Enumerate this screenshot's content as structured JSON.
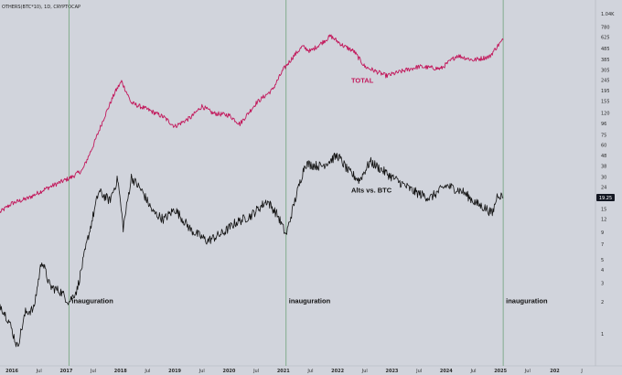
{
  "chart_data": {
    "type": "line",
    "title": "OTHERS(BTC*10), 1D, CRYPTOCAP",
    "scale": "log",
    "ylim": [
      0.5,
      1400
    ],
    "y_ticks": [
      "1.04K",
      "780",
      "625",
      "485",
      "385",
      "305",
      "245",
      "195",
      "155",
      "120",
      "96",
      "75",
      "60",
      "48",
      "38",
      "30",
      "24",
      "15",
      "12",
      "9",
      "7",
      "5",
      "4",
      "3",
      "2",
      "1"
    ],
    "y_tick_values": [
      1040,
      780,
      625,
      485,
      385,
      305,
      245,
      195,
      155,
      120,
      96,
      75,
      60,
      48,
      38,
      30,
      24,
      15,
      12,
      9,
      7,
      5,
      4,
      3,
      2,
      1
    ],
    "x_ticks": [
      "2016",
      "Jul",
      "2017",
      "Jul",
      "2018",
      "Jul",
      "2019",
      "Jul",
      "2020",
      "Jul",
      "2021",
      "Jul",
      "2022",
      "Jul",
      "2023",
      "Jul",
      "2024",
      "Jul",
      "2025",
      "Jul",
      "202",
      "J"
    ],
    "x_tick_values": [
      2016.0,
      2016.5,
      2017.0,
      2017.5,
      2018.0,
      2018.5,
      2019.0,
      2019.5,
      2020.0,
      2020.5,
      2021.0,
      2021.5,
      2022.0,
      2022.5,
      2023.0,
      2023.5,
      2024.0,
      2024.5,
      2025.0,
      2025.5,
      2026.0,
      2026.5
    ],
    "xlim": [
      2015.78,
      2026.75
    ],
    "current_value": "19.25",
    "inauguration_dates": [
      2017.05,
      2021.05,
      2025.05
    ],
    "series": [
      {
        "name": "TOTAL",
        "color": "#c2185b",
        "x": [
          2015.78,
          2016.0,
          2016.3,
          2016.6,
          2016.9,
          2017.1,
          2017.3,
          2017.5,
          2017.7,
          2017.9,
          2018.02,
          2018.2,
          2018.5,
          2018.8,
          2019.0,
          2019.3,
          2019.5,
          2019.7,
          2020.0,
          2020.2,
          2020.5,
          2020.8,
          2021.0,
          2021.2,
          2021.35,
          2021.5,
          2021.8,
          2021.87,
          2022.1,
          2022.3,
          2022.5,
          2022.9,
          2023.2,
          2023.5,
          2023.9,
          2024.2,
          2024.5,
          2024.8,
          2024.95,
          2025.05
        ],
        "values": [
          14,
          17,
          19,
          23,
          27,
          30,
          35,
          60,
          110,
          190,
          240,
          150,
          130,
          110,
          90,
          110,
          140,
          120,
          115,
          95,
          150,
          200,
          310,
          420,
          510,
          460,
          600,
          640,
          520,
          460,
          330,
          270,
          300,
          330,
          315,
          420,
          380,
          410,
          520,
          590
        ]
      },
      {
        "name": "Alts vs. BTC",
        "color": "#111111",
        "x": [
          2015.78,
          2015.95,
          2016.1,
          2016.25,
          2016.4,
          2016.55,
          2016.7,
          2016.9,
          2017.05,
          2017.2,
          2017.4,
          2017.6,
          2017.8,
          2017.95,
          2018.05,
          2018.2,
          2018.4,
          2018.6,
          2018.8,
          2019.0,
          2019.3,
          2019.6,
          2019.9,
          2020.1,
          2020.4,
          2020.7,
          2020.9,
          2021.05,
          2021.2,
          2021.4,
          2021.7,
          2022.0,
          2022.2,
          2022.4,
          2022.6,
          2023.0,
          2023.4,
          2023.7,
          2024.0,
          2024.3,
          2024.55,
          2024.75,
          2024.85,
          2024.95,
          2025.05
        ],
        "values": [
          1.9,
          1.3,
          0.75,
          1.6,
          1.7,
          5.0,
          2.8,
          2.5,
          2.0,
          2.6,
          8.0,
          22.0,
          18.0,
          29.0,
          10.0,
          30.0,
          22.0,
          14.0,
          12.0,
          15.0,
          9.5,
          7.5,
          9.0,
          11.0,
          13.0,
          18.0,
          13.0,
          8.5,
          17.0,
          40.0,
          38.0,
          48.0,
          34.0,
          28.0,
          42.0,
          30.0,
          22.0,
          19.0,
          25.0,
          22.0,
          17.0,
          15.0,
          13.5,
          21.0,
          19.25
        ]
      }
    ],
    "annotations": [
      {
        "text": "inauguration",
        "x": 2017.05,
        "y": 1.95
      },
      {
        "text": "inauguration",
        "x": 2021.05,
        "y": 1.95
      },
      {
        "text": "inauguration",
        "x": 2025.05,
        "y": 1.95
      },
      {
        "text": "TOTAL",
        "x": 2022.2,
        "y": 232,
        "color": "#c2185b"
      },
      {
        "text": "Alts vs. BTC",
        "x": 2022.2,
        "y": 21.5,
        "color": "#111111"
      }
    ]
  }
}
